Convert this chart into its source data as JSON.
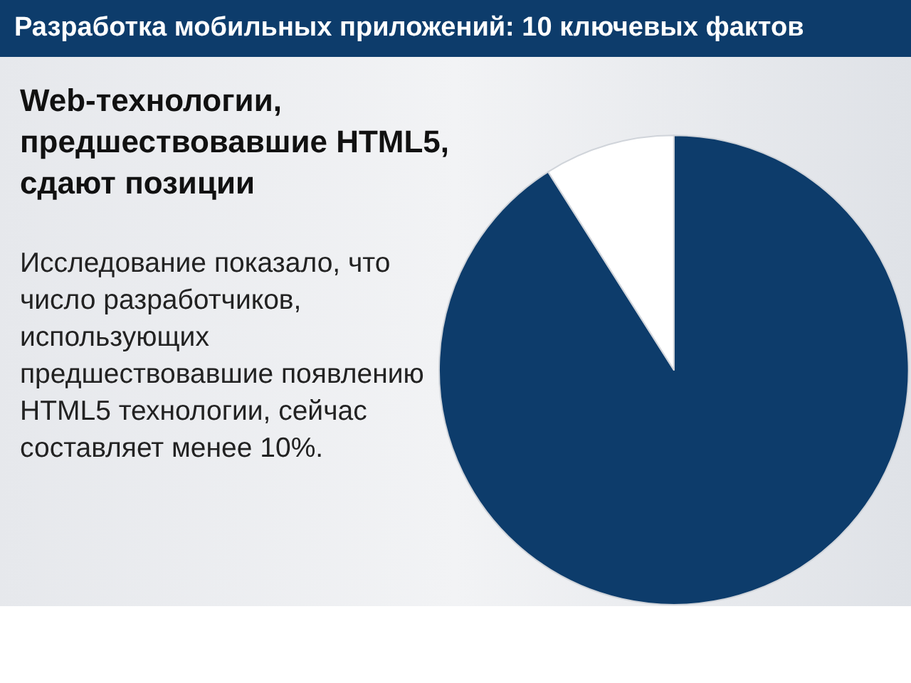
{
  "chart_data": {
    "type": "pie",
    "title": "Разработка мобильных приложений: 10 ключевых фактов",
    "subtitle": "Web-технологии, предшествовавшие HTML5, сдают позиции",
    "annotations": [
      "Исследование показало, что число разработчиков, использующих предшествовавшие появлению HTML5 технологии, сейчас составляет менее 10%."
    ],
    "categories": [
      null,
      null
    ],
    "values": [
      91,
      9
    ],
    "colors": [
      "#0d3c6b",
      "#ffffff"
    ]
  }
}
